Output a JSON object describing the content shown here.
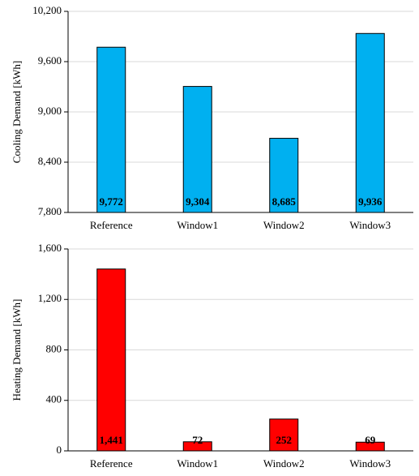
{
  "chart_data": [
    {
      "type": "bar",
      "y_label": "Cooling Demand [kWh]",
      "categories": [
        "Reference",
        "Window1",
        "Window2",
        "Window3"
      ],
      "values": [
        9772,
        9304,
        8685,
        9936
      ],
      "value_labels": [
        "9,772",
        "9,304",
        "8,685",
        "9,936"
      ],
      "color": "#00b0f0",
      "ylim": [
        7800,
        10200
      ],
      "yticks": [
        {
          "value": 7800,
          "label": "7,800"
        },
        {
          "value": 8400,
          "label": "8,400"
        },
        {
          "value": 9000,
          "label": "9,000"
        },
        {
          "value": 9600,
          "label": "9,600"
        },
        {
          "value": 10200,
          "label": "10,200"
        }
      ],
      "grid": true
    },
    {
      "type": "bar",
      "y_label": "Heating Demand [kWh]",
      "categories": [
        "Reference",
        "Window1",
        "Window2",
        "Window3"
      ],
      "values": [
        1441,
        72,
        252,
        69
      ],
      "value_labels": [
        "1,441",
        "72",
        "252",
        "69"
      ],
      "color": "#ff0000",
      "ylim": [
        0,
        1600
      ],
      "yticks": [
        0,
        400,
        800,
        {
          "value": 1200,
          "label": "1,200"
        },
        {
          "value": 1600,
          "label": "1,600"
        }
      ],
      "grid": true
    }
  ]
}
